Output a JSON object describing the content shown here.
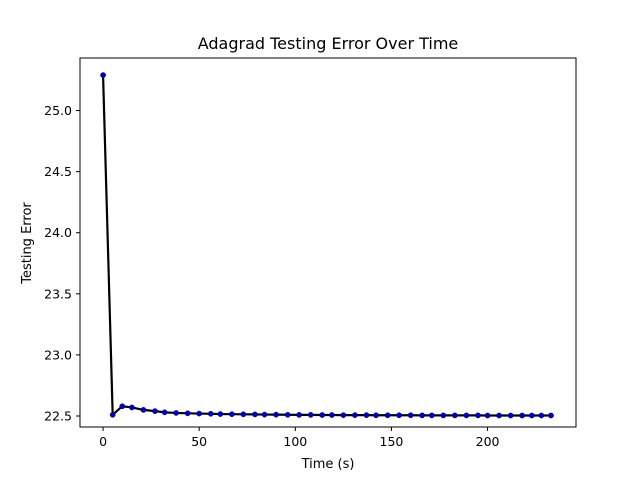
{
  "chart_data": {
    "type": "line",
    "title": "Adagrad Testing Error Over Time",
    "xlabel": "Time (s)",
    "ylabel": "Testing Error",
    "xlim": [
      -12,
      246
    ],
    "ylim": [
      22.41,
      25.43
    ],
    "x_ticks": [
      0,
      50,
      100,
      150,
      200
    ],
    "y_ticks": [
      22.5,
      23.0,
      23.5,
      24.0,
      24.5,
      25.0
    ],
    "y_tick_labels": [
      "22.5",
      "23.0",
      "23.5",
      "24.0",
      "24.5",
      "25.0"
    ],
    "grid": false,
    "line_color": "#000000",
    "marker_color": "#0000bf",
    "series": [
      {
        "x": [
          0,
          5,
          10,
          15,
          21,
          27,
          32,
          38,
          44,
          50,
          56,
          61,
          67,
          73,
          79,
          84,
          90,
          96,
          102,
          108,
          114,
          119,
          125,
          131,
          137,
          142,
          148,
          154,
          160,
          166,
          171,
          177,
          183,
          189,
          195,
          200,
          206,
          212,
          218,
          223,
          228,
          233
        ],
        "y": [
          25.29,
          22.51,
          22.58,
          22.57,
          22.55,
          22.54,
          22.53,
          22.525,
          22.522,
          22.52,
          22.518,
          22.516,
          22.515,
          22.514,
          22.513,
          22.512,
          22.511,
          22.51,
          22.509,
          22.509,
          22.508,
          22.508,
          22.507,
          22.507,
          22.507,
          22.506,
          22.506,
          22.506,
          22.506,
          22.505,
          22.505,
          22.505,
          22.505,
          22.505,
          22.505,
          22.504,
          22.504,
          22.504,
          22.504,
          22.504,
          22.504,
          22.504
        ]
      }
    ]
  }
}
